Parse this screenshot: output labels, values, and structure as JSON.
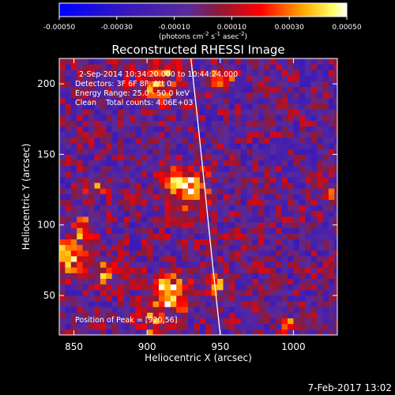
{
  "chart_data": {
    "type": "heatmap",
    "title": "Reconstructed RHESSI Image",
    "xlabel": "Heliocentric X (arcsec)",
    "ylabel": "Heliocentric Y (arcsec)",
    "xlim": [
      840,
      1030
    ],
    "ylim": [
      22,
      218
    ],
    "xticks": [
      850,
      900,
      950,
      1000
    ],
    "yticks": [
      50,
      100,
      150,
      200
    ],
    "colorbar": {
      "label_main": "(photons cm",
      "label_exp1": "-2",
      "label_mid": " s",
      "label_exp2": "-1",
      "label_end": " asec",
      "label_exp3": "-2",
      "label_close": ")",
      "range": [
        -0.0005,
        0.0005
      ],
      "ticks": [
        "-0.00050",
        "-0.00030",
        "-0.00010",
        "0.00010",
        "0.00030",
        "0.00050"
      ],
      "colormap": "blue-purple-red-yellow-white"
    },
    "annotations": [
      "2-Sep-2014 10:34:20.000 to 10:44:24.000",
      "Detectors: 3F 6F 8F, Att 0",
      "Energy Range: 25.0 - 50.0 keV",
      "Clean    Total counts: 4.06E+03"
    ],
    "peak_label": "Position of Peak = [920,56]",
    "limb_curve": {
      "x": [
        930,
        935,
        940,
        945,
        950
      ],
      "y": [
        218,
        170,
        120,
        70,
        22
      ]
    },
    "sources": [
      {
        "x": 925,
        "y": 125,
        "r": 14,
        "v": 0.00045
      },
      {
        "x": 905,
        "y": 200,
        "r": 14,
        "v": 0.00035
      },
      {
        "x": 948,
        "y": 202,
        "r": 9,
        "v": 0.0003
      },
      {
        "x": 842,
        "y": 75,
        "r": 12,
        "v": 0.00045
      },
      {
        "x": 855,
        "y": 95,
        "r": 8,
        "v": 0.00035
      },
      {
        "x": 868,
        "y": 64,
        "r": 8,
        "v": 0.0003
      },
      {
        "x": 915,
        "y": 50,
        "r": 12,
        "v": 0.0005
      },
      {
        "x": 945,
        "y": 58,
        "r": 8,
        "v": 0.00035
      },
      {
        "x": 900,
        "y": 30,
        "r": 10,
        "v": 0.0003
      },
      {
        "x": 862,
        "y": 125,
        "r": 7,
        "v": 0.00025
      },
      {
        "x": 1025,
        "y": 120,
        "r": 6,
        "v": 0.0003
      },
      {
        "x": 995,
        "y": 28,
        "r": 6,
        "v": 0.00025
      },
      {
        "x": 1010,
        "y": 30,
        "r": 5,
        "v": 0.00022
      }
    ]
  },
  "timestamp": "7-Feb-2017 13:02"
}
